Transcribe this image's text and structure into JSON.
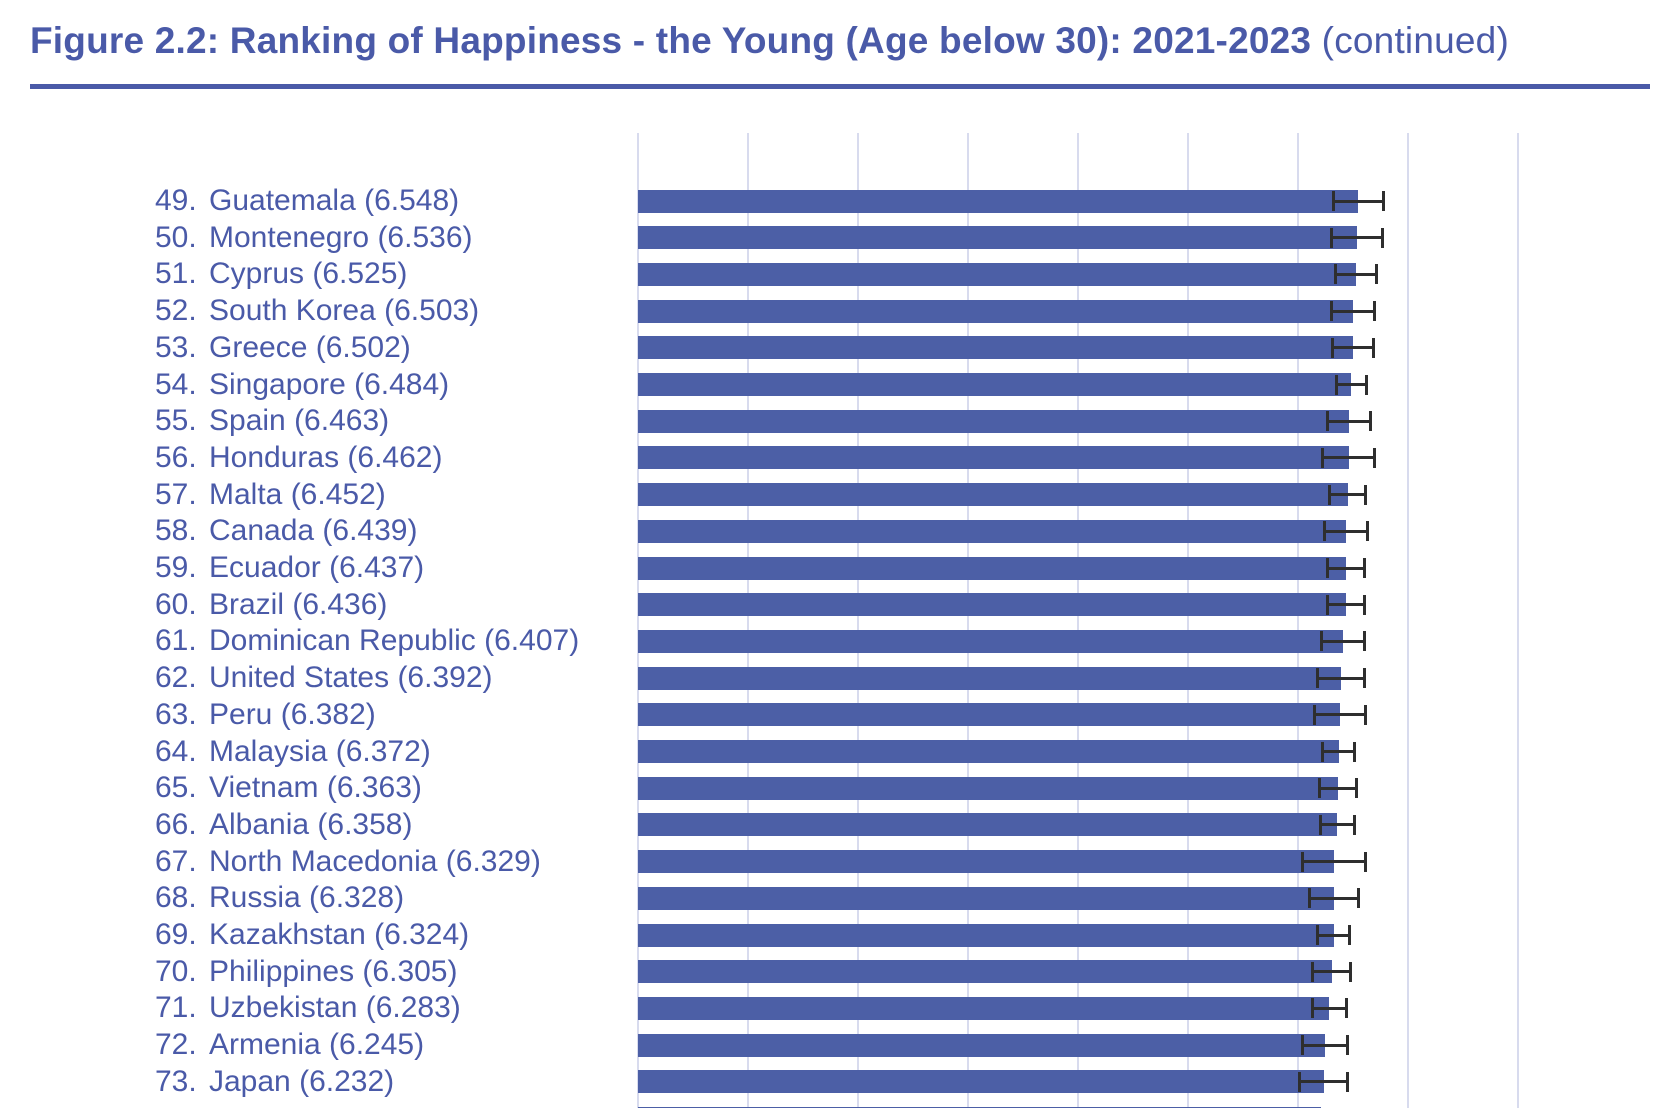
{
  "header": {
    "title_bold": "Figure 2.2: Ranking of Happiness - the Young (Age below 30): 2021-2023",
    "title_suffix": " (continued)"
  },
  "chart_data": {
    "type": "bar",
    "orientation": "horizontal",
    "title": "Figure 2.2: Ranking of Happiness - the Young (Age below 30): 2021-2023 (continued)",
    "xlabel": "",
    "ylabel": "",
    "xlim": [
      0,
      8
    ],
    "gridline_step": 1,
    "grid": true,
    "legend": "none",
    "error_bars": true,
    "label_format": "rank. country (value)",
    "rows": [
      {
        "rank": 49,
        "country": "Guatemala",
        "value": 6.548,
        "ci": 0.23
      },
      {
        "rank": 50,
        "country": "Montenegro",
        "value": 6.536,
        "ci": 0.24
      },
      {
        "rank": 51,
        "country": "Cyprus",
        "value": 6.525,
        "ci": 0.19
      },
      {
        "rank": 52,
        "country": "South Korea",
        "value": 6.503,
        "ci": 0.2
      },
      {
        "rank": 53,
        "country": "Greece",
        "value": 6.502,
        "ci": 0.19
      },
      {
        "rank": 54,
        "country": "Singapore",
        "value": 6.484,
        "ci": 0.14
      },
      {
        "rank": 55,
        "country": "Spain",
        "value": 6.463,
        "ci": 0.2
      },
      {
        "rank": 56,
        "country": "Honduras",
        "value": 6.462,
        "ci": 0.24
      },
      {
        "rank": 57,
        "country": "Malta",
        "value": 6.452,
        "ci": 0.17
      },
      {
        "rank": 58,
        "country": "Canada",
        "value": 6.439,
        "ci": 0.2
      },
      {
        "rank": 59,
        "country": "Ecuador",
        "value": 6.437,
        "ci": 0.17
      },
      {
        "rank": 60,
        "country": "Brazil",
        "value": 6.436,
        "ci": 0.17
      },
      {
        "rank": 61,
        "country": "Dominican Republic",
        "value": 6.407,
        "ci": 0.2
      },
      {
        "rank": 62,
        "country": "United States",
        "value": 6.392,
        "ci": 0.22
      },
      {
        "rank": 63,
        "country": "Peru",
        "value": 6.382,
        "ci": 0.24
      },
      {
        "rank": 64,
        "country": "Malaysia",
        "value": 6.372,
        "ci": 0.15
      },
      {
        "rank": 65,
        "country": "Vietnam",
        "value": 6.363,
        "ci": 0.17
      },
      {
        "rank": 66,
        "country": "Albania",
        "value": 6.358,
        "ci": 0.16
      },
      {
        "rank": 67,
        "country": "North Macedonia",
        "value": 6.329,
        "ci": 0.29
      },
      {
        "rank": 68,
        "country": "Russia",
        "value": 6.328,
        "ci": 0.23
      },
      {
        "rank": 69,
        "country": "Kazakhstan",
        "value": 6.324,
        "ci": 0.15
      },
      {
        "rank": 70,
        "country": "Philippines",
        "value": 6.305,
        "ci": 0.18
      },
      {
        "rank": 71,
        "country": "Uzbekistan",
        "value": 6.283,
        "ci": 0.16
      },
      {
        "rank": 72,
        "country": "Armenia",
        "value": 6.245,
        "ci": 0.21
      },
      {
        "rank": 73,
        "country": "Japan",
        "value": 6.232,
        "ci": 0.22
      }
    ],
    "next_bar_partial": {
      "visible": true,
      "approx_value": 6.21
    },
    "colors": {
      "bar": "#4c5fa6",
      "gridline": "#d8dbee",
      "error_bar": "#2e2e2e",
      "title_text": "#4a5aa8",
      "label_text": "#4a5aa8",
      "title_rule": "#4a5aa8",
      "background": "#ffffff"
    }
  }
}
